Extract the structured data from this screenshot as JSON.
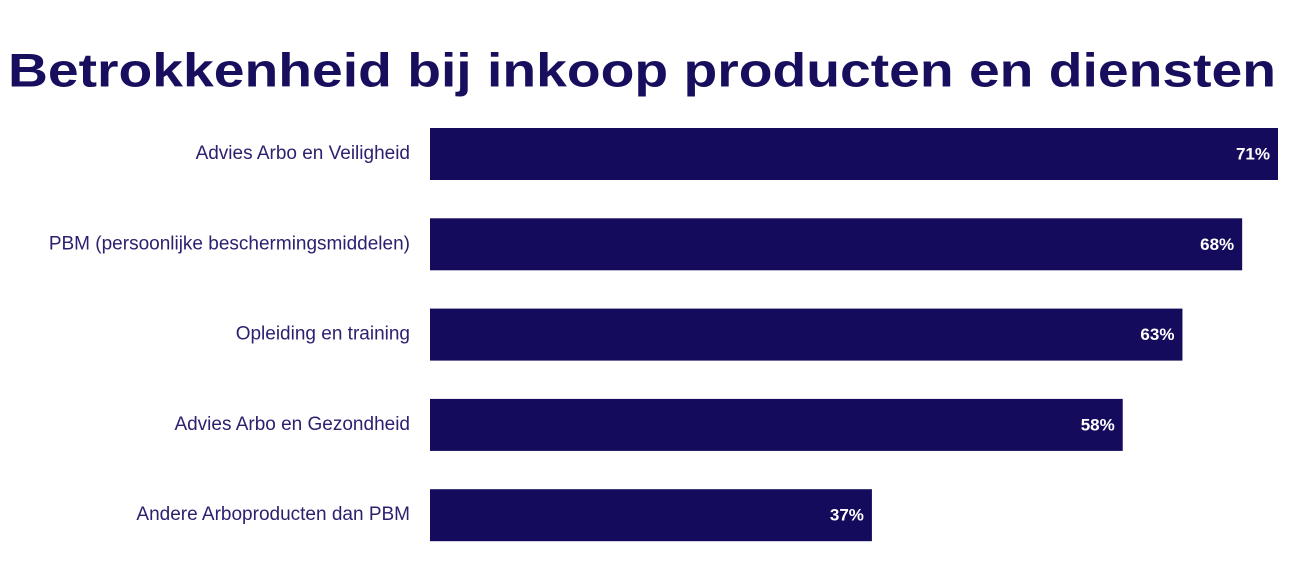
{
  "chart_data": {
    "type": "bar",
    "orientation": "horizontal",
    "title": "Betrokkenheid bij inkoop producten en diensten",
    "categories": [
      "Advies Arbo en Veiligheid",
      "PBM (persoonlijke beschermingsmiddelen)",
      "Opleiding en training",
      "Advies Arbo en Gezondheid",
      "Andere Arboproducten dan PBM"
    ],
    "values": [
      71,
      68,
      63,
      58,
      37
    ],
    "value_labels": [
      "71%",
      "68%",
      "63%",
      "58%",
      "37%"
    ],
    "color": "#140b5c"
  }
}
